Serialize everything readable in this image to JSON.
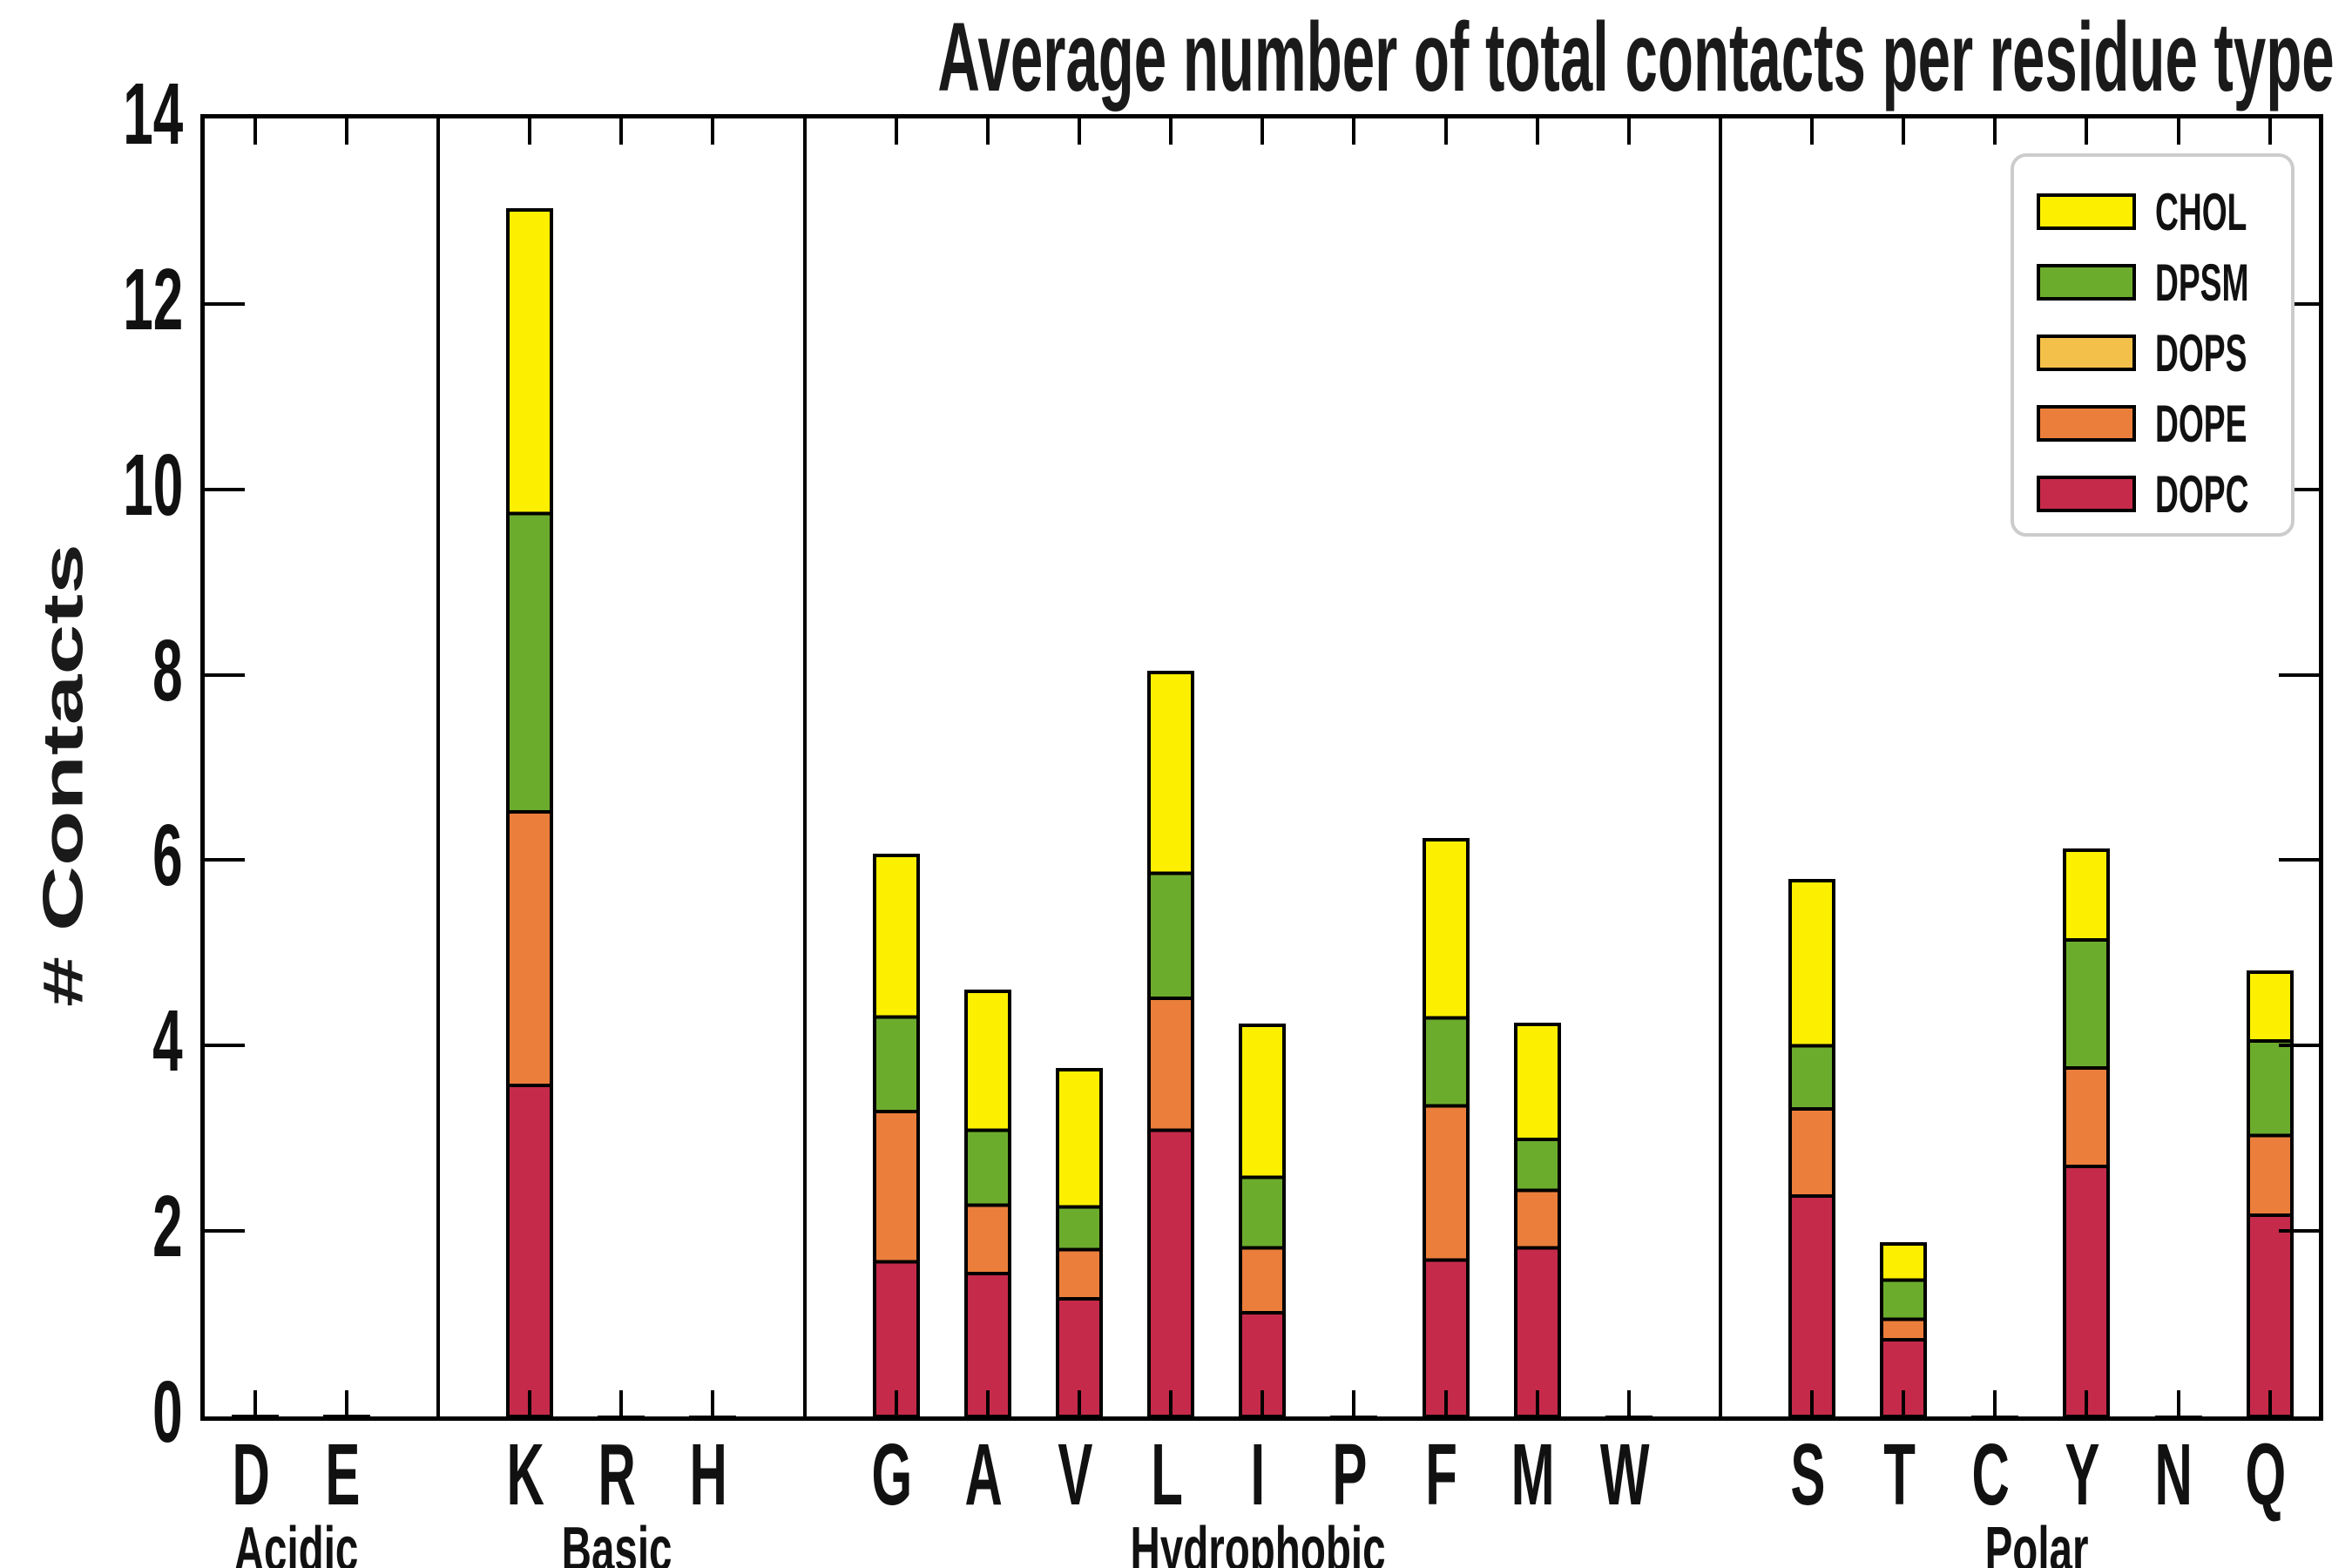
{
  "chart_data": {
    "type": "bar",
    "stacked": true,
    "title": "Average number of total contacts per residue type",
    "ylabel": "# Contacts",
    "xlabel": "",
    "ylim": [
      0,
      14
    ],
    "yticks": [
      "0",
      "2",
      "4",
      "6",
      "8",
      "10",
      "12",
      "14"
    ],
    "grid": false,
    "legend_position": "upper right",
    "categories": [
      "D",
      "E",
      "K",
      "R",
      "H",
      "G",
      "A",
      "V",
      "L",
      "I",
      "P",
      "F",
      "M",
      "W",
      "S",
      "T",
      "C",
      "Y",
      "N",
      "Q"
    ],
    "groups": [
      {
        "label": "Acidic",
        "residues": [
          "D",
          "E"
        ]
      },
      {
        "label": "Basic",
        "residues": [
          "K",
          "R",
          "H"
        ]
      },
      {
        "label": "Hydrophobic",
        "residues": [
          "G",
          "A",
          "V",
          "L",
          "I",
          "P",
          "F",
          "M",
          "W"
        ]
      },
      {
        "label": "Polar",
        "residues": [
          "S",
          "T",
          "C",
          "Y",
          "N",
          "Q"
        ]
      }
    ],
    "series": [
      {
        "name": "DOPC",
        "color": "#c62a4a",
        "values": [
          0.03,
          0.03,
          3.55,
          0.02,
          0.02,
          1.65,
          1.52,
          1.25,
          3.07,
          1.1,
          0.01,
          1.67,
          1.8,
          0.01,
          2.36,
          0.81,
          0.01,
          2.68,
          0.02,
          2.15
        ]
      },
      {
        "name": "DOPE",
        "color": "#eb7e3b",
        "values": [
          0.01,
          0.01,
          2.95,
          0.01,
          0.01,
          1.62,
          0.74,
          0.53,
          1.42,
          0.7,
          0.01,
          1.66,
          0.62,
          0.01,
          0.94,
          0.22,
          0.0,
          1.06,
          0.01,
          0.86
        ]
      },
      {
        "name": "DOPS",
        "color": "#f3c04a",
        "values": [
          0.0,
          0.0,
          0.0,
          0.0,
          0.0,
          0.0,
          0.0,
          0.0,
          0.0,
          0.0,
          0.0,
          0.0,
          0.0,
          0.0,
          0.0,
          0.0,
          0.0,
          0.0,
          0.0,
          0.0
        ]
      },
      {
        "name": "DPSM",
        "color": "#6cac2d",
        "values": [
          0.0,
          0.0,
          3.22,
          0.0,
          0.0,
          1.02,
          0.81,
          0.46,
          1.35,
          0.76,
          0.0,
          0.95,
          0.55,
          0.0,
          0.68,
          0.42,
          0.0,
          1.38,
          0.0,
          1.02
        ]
      },
      {
        "name": "CHOL",
        "color": "#fcf000",
        "values": [
          0.0,
          0.0,
          3.33,
          0.0,
          0.0,
          1.8,
          1.55,
          1.54,
          2.22,
          1.7,
          0.0,
          1.98,
          1.3,
          0.0,
          1.84,
          0.45,
          0.0,
          1.03,
          0.0,
          0.8
        ]
      }
    ],
    "bar_totals": {
      "D": 0.04,
      "E": 0.04,
      "K": 13.05,
      "R": 0.03,
      "H": 0.03,
      "G": 6.09,
      "A": 4.62,
      "V": 3.78,
      "L": 8.06,
      "I": 4.26,
      "P": 0.02,
      "F": 6.26,
      "M": 4.27,
      "W": 0.02,
      "S": 5.82,
      "T": 1.9,
      "C": 0.01,
      "Y": 6.15,
      "N": 0.03,
      "Q": 4.83
    },
    "legend_entries": [
      {
        "label": "CHOL",
        "color": "#fcf000"
      },
      {
        "label": "DPSM",
        "color": "#6cac2d"
      },
      {
        "label": "DOPS",
        "color": "#f3c04a"
      },
      {
        "label": "DOPE",
        "color": "#eb7e3b"
      },
      {
        "label": "DOPC",
        "color": "#c62a4a"
      }
    ]
  }
}
